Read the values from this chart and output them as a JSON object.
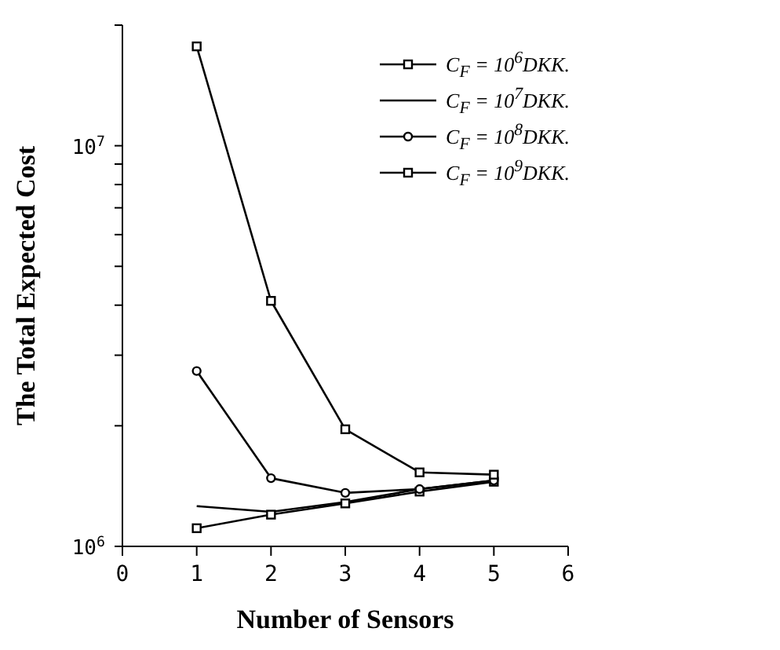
{
  "chart_data": {
    "type": "line",
    "xlabel": "Number of Sensors",
    "ylabel": "The Total Expected Cost",
    "x": [
      1,
      2,
      3,
      4,
      5
    ],
    "series": [
      {
        "name": "C$_{F}$ = 10$^{6}$DKK.",
        "color": "#000000",
        "marker": "square",
        "values": [
          1110000,
          1200000,
          1280000,
          1370000,
          1450000
        ]
      },
      {
        "name": "C$_{F}$ = 10$^{7}$DKK.",
        "color": "#000000",
        "marker": "none",
        "values": [
          1260000,
          1220000,
          1290000,
          1390000,
          1460000
        ]
      },
      {
        "name": "C$_{F}$ = 10$^{8}$DKK.",
        "color": "#000000",
        "marker": "circle",
        "values": [
          2740000,
          1480000,
          1360000,
          1390000,
          1460000
        ]
      },
      {
        "name": "C$_{F}$ = 10$^{9}$DKK.",
        "color": "#000000",
        "marker": "square",
        "values": [
          17700000,
          4100000,
          1960000,
          1530000,
          1510000
        ]
      }
    ],
    "log": "y",
    "xlim": [
      0,
      6
    ],
    "xticks": [
      0,
      1,
      2,
      3,
      4,
      5,
      6
    ],
    "ylim": [
      1000000,
      20000000
    ],
    "yticks": [
      {
        "value": 1000000,
        "label": "10$^{6}$"
      },
      {
        "value": 2000000,
        "label": null
      },
      {
        "value": 3000000,
        "label": null
      },
      {
        "value": 4000000,
        "label": null
      },
      {
        "value": 5000000,
        "label": null
      },
      {
        "value": 6000000,
        "label": null
      },
      {
        "value": 7000000,
        "label": null
      },
      {
        "value": 8000000,
        "label": null
      },
      {
        "value": 9000000,
        "label": null
      },
      {
        "value": 10000000,
        "label": "10$^{7}$"
      },
      {
        "value": 20000000,
        "label": null
      }
    ],
    "grid": false,
    "legend": "top right"
  }
}
